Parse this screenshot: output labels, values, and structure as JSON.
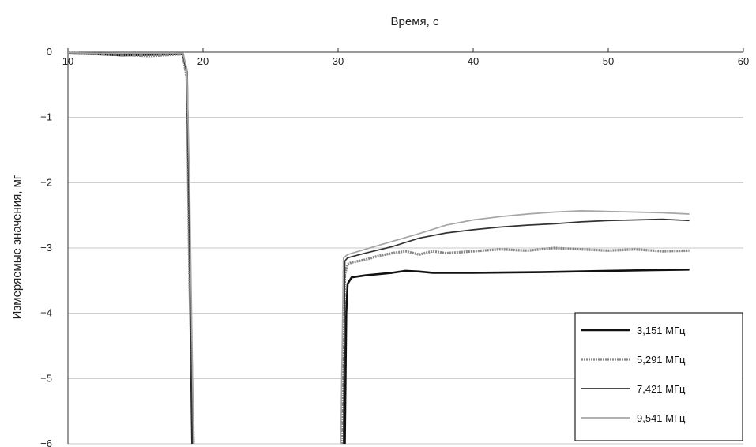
{
  "chart_data": {
    "type": "line",
    "xlabel": "Время, с",
    "ylabel": "Измеряемые значения, мг",
    "x_ticks": [
      "10",
      "20",
      "30",
      "40",
      "50",
      "60"
    ],
    "y_ticks": [
      "0",
      "−1",
      "−2",
      "−3",
      "−4",
      "−5",
      "−6"
    ],
    "xlim": [
      10,
      60
    ],
    "ylim": [
      -6,
      0
    ],
    "x_axis_position": "top",
    "grid": "horizontal",
    "legend_position": "bottom-right",
    "series": [
      {
        "name": "3,151 МГц",
        "color": "#111111",
        "style": "solid-thick",
        "segments": [
          [
            [
              10,
              -0.02
            ],
            [
              12,
              -0.03
            ],
            [
              14,
              -0.05
            ],
            [
              16,
              -0.04
            ],
            [
              18.5,
              -0.03
            ],
            [
              18.8,
              -0.3
            ],
            [
              19,
              -3
            ],
            [
              19.2,
              -6
            ]
          ],
          [
            [
              30.5,
              -6
            ],
            [
              30.6,
              -4
            ],
            [
              30.7,
              -3.55
            ],
            [
              31,
              -3.45
            ],
            [
              32,
              -3.42
            ],
            [
              33,
              -3.4
            ],
            [
              34,
              -3.38
            ],
            [
              35,
              -3.35
            ],
            [
              36,
              -3.36
            ],
            [
              37,
              -3.38
            ],
            [
              40,
              -3.38
            ],
            [
              45,
              -3.37
            ],
            [
              50,
              -3.35
            ],
            [
              53,
              -3.34
            ],
            [
              56,
              -3.33
            ]
          ]
        ]
      },
      {
        "name": "5,291 МГц",
        "color": "#888888",
        "style": "noisy-thick",
        "segments": [
          [
            [
              10,
              -0.01
            ],
            [
              12,
              -0.03
            ],
            [
              14,
              -0.04
            ],
            [
              16,
              -0.06
            ],
            [
              18.5,
              -0.03
            ],
            [
              18.8,
              -0.4
            ],
            [
              19,
              -3.5
            ],
            [
              19.3,
              -6
            ]
          ],
          [
            [
              30.3,
              -6
            ],
            [
              30.5,
              -3.4
            ],
            [
              30.7,
              -3.25
            ],
            [
              31,
              -3.22
            ],
            [
              32,
              -3.18
            ],
            [
              33,
              -3.12
            ],
            [
              34,
              -3.08
            ],
            [
              35,
              -3.05
            ],
            [
              36,
              -3.1
            ],
            [
              37,
              -3.05
            ],
            [
              38,
              -3.08
            ],
            [
              40,
              -3.05
            ],
            [
              42,
              -3.02
            ],
            [
              44,
              -3.04
            ],
            [
              46,
              -3.0
            ],
            [
              48,
              -3.02
            ],
            [
              50,
              -3.04
            ],
            [
              52,
              -3.02
            ],
            [
              54,
              -3.05
            ],
            [
              56,
              -3.04
            ]
          ]
        ]
      },
      {
        "name": "7,421 МГц",
        "color": "#333333",
        "style": "solid-thin",
        "segments": [
          [
            [
              10,
              -0.02
            ],
            [
              14,
              -0.03
            ],
            [
              18.5,
              -0.02
            ],
            [
              18.8,
              -0.3
            ],
            [
              19,
              -2.5
            ],
            [
              19.2,
              -6
            ]
          ],
          [
            [
              30.4,
              -6
            ],
            [
              30.5,
              -3.2
            ],
            [
              30.7,
              -3.15
            ],
            [
              32,
              -3.08
            ],
            [
              34,
              -2.98
            ],
            [
              36,
              -2.85
            ],
            [
              38,
              -2.77
            ],
            [
              40,
              -2.72
            ],
            [
              42,
              -2.68
            ],
            [
              44,
              -2.65
            ],
            [
              46,
              -2.63
            ],
            [
              48,
              -2.6
            ],
            [
              50,
              -2.58
            ],
            [
              52,
              -2.57
            ],
            [
              54,
              -2.56
            ],
            [
              56,
              -2.58
            ]
          ]
        ]
      },
      {
        "name": "9,541 МГц",
        "color": "#a5a5a5",
        "style": "solid-thin",
        "segments": [
          [
            [
              10,
              -0.01
            ],
            [
              14,
              -0.02
            ],
            [
              18.5,
              -0.02
            ],
            [
              18.8,
              -0.25
            ],
            [
              19,
              -2
            ],
            [
              19.3,
              -6
            ]
          ],
          [
            [
              30.2,
              -6
            ],
            [
              30.4,
              -3.15
            ],
            [
              30.7,
              -3.1
            ],
            [
              32,
              -3.02
            ],
            [
              34,
              -2.9
            ],
            [
              36,
              -2.78
            ],
            [
              38,
              -2.65
            ],
            [
              40,
              -2.57
            ],
            [
              42,
              -2.52
            ],
            [
              44,
              -2.48
            ],
            [
              46,
              -2.45
            ],
            [
              48,
              -2.43
            ],
            [
              50,
              -2.44
            ],
            [
              52,
              -2.45
            ],
            [
              54,
              -2.46
            ],
            [
              56,
              -2.48
            ]
          ]
        ]
      }
    ]
  }
}
